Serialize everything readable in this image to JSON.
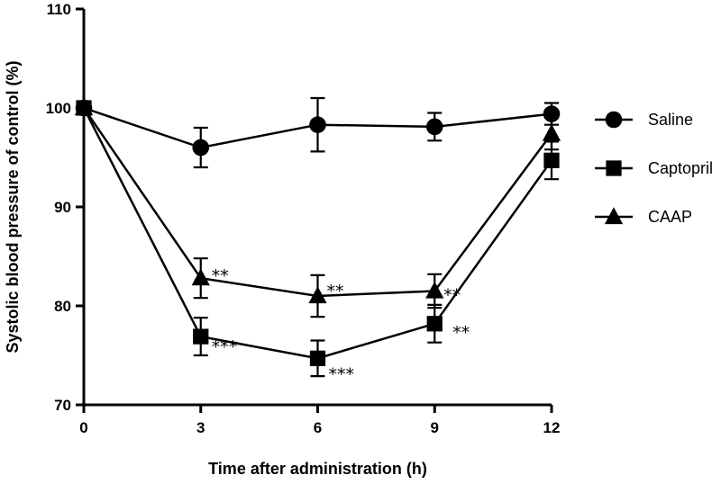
{
  "chart_data": {
    "type": "line",
    "xlabel": "Time after administration (h)",
    "ylabel": "Systolic blood pressure of control (%)",
    "x": [
      0,
      3,
      6,
      9,
      12
    ],
    "xticks": [
      "0",
      "3",
      "6",
      "9",
      "12"
    ],
    "ylim": [
      70,
      110
    ],
    "yticks": [
      "70",
      "80",
      "90",
      "100",
      "110"
    ],
    "legend_position": "right",
    "series": [
      {
        "name": "Saline",
        "marker": "circle",
        "values": [
          100,
          96,
          98.3,
          98.1,
          99.4
        ],
        "errors": [
          0,
          2,
          2.7,
          1.4,
          1.1
        ],
        "significance": [
          "",
          "",
          "",
          "",
          ""
        ]
      },
      {
        "name": "Captopril",
        "marker": "square",
        "values": [
          100,
          76.9,
          74.7,
          78.2,
          94.7
        ],
        "errors": [
          0,
          1.9,
          1.8,
          1.9,
          1.9
        ],
        "significance": [
          "",
          "***",
          "***",
          "**",
          ""
        ]
      },
      {
        "name": "CAAP",
        "marker": "triangle",
        "values": [
          100,
          82.8,
          81,
          81.5,
          97.4
        ],
        "errors": [
          0,
          2,
          2.1,
          1.7,
          1.6
        ],
        "significance": [
          "",
          "**",
          "**",
          "**",
          ""
        ]
      }
    ]
  }
}
